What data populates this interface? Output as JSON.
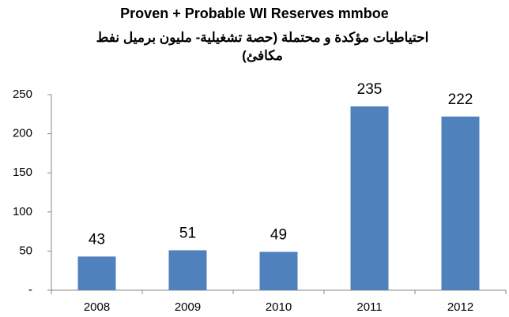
{
  "chart_data": {
    "type": "bar",
    "title": "Proven + Probable WI Reserves  mmboe",
    "subtitle": "احتياطيات مؤكدة و محتملة (حصة تشغيلية- مليون برميل نفط مكافئ)",
    "categories": [
      "2008",
      "2009",
      "2010",
      "2011",
      "2012"
    ],
    "values": [
      43,
      51,
      49,
      235,
      222
    ],
    "color": "#4f81bd",
    "ylim": [
      0,
      250
    ],
    "yticks": [
      {
        "value": 0,
        "label": "-"
      },
      50,
      100,
      150,
      200,
      250
    ],
    "grid": false
  }
}
